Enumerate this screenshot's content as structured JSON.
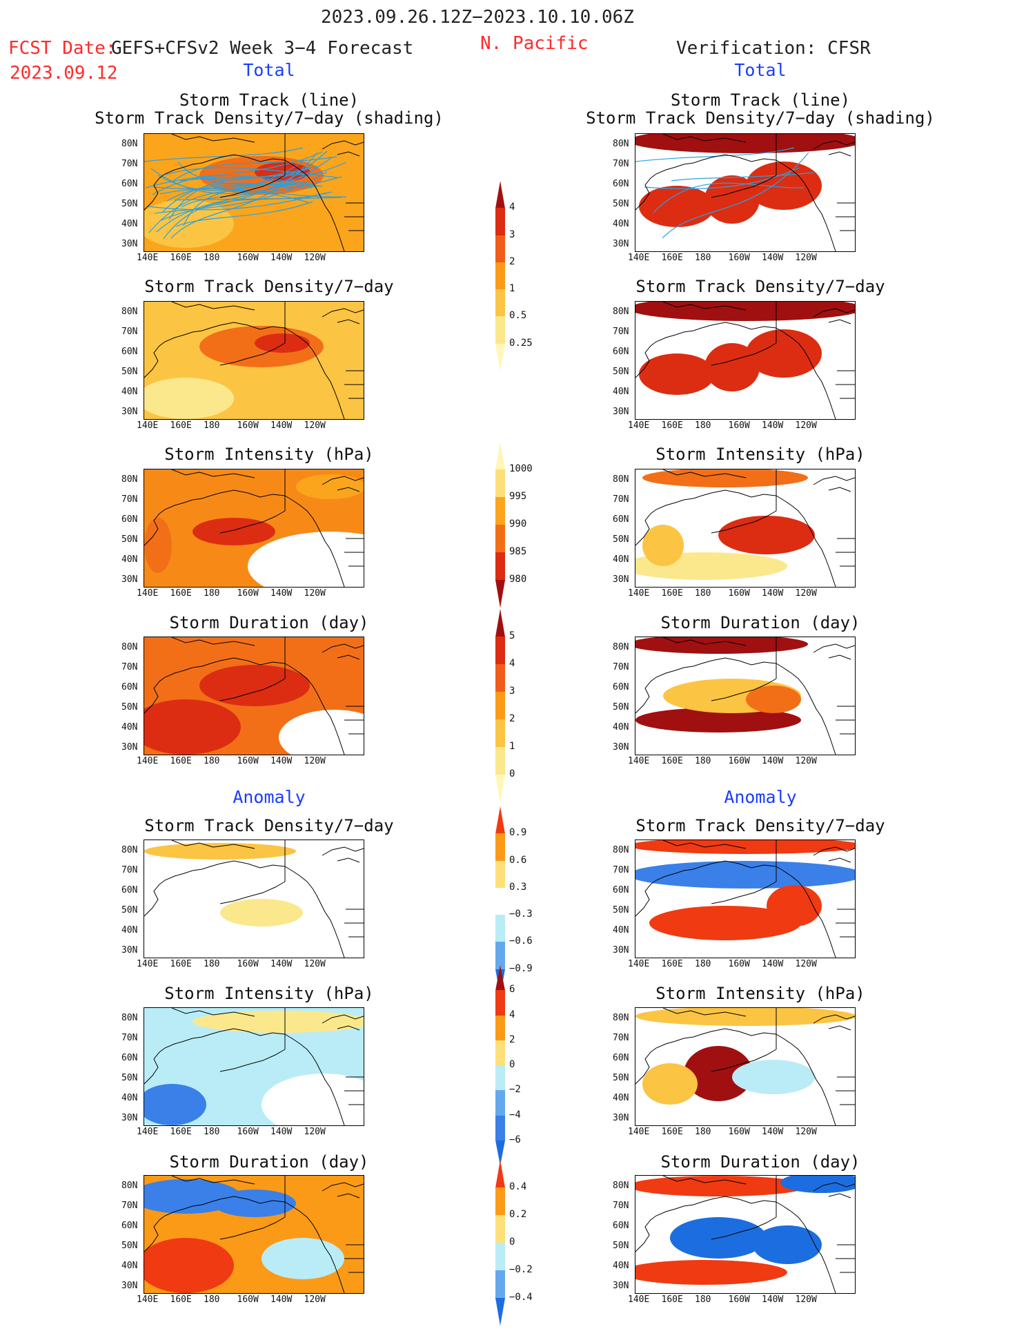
{
  "header": {
    "date_range": "2023.09.26.12Z−2023.10.10.06Z",
    "fcst_label": "FCST Date:",
    "fcst_source": "GEFS+CFSv2 Week 3−4 Forecast",
    "region": "N. Pacific",
    "verification": "Verification: CFSR",
    "fcst_date": "2023.09.12"
  },
  "columns": {
    "left": {
      "section_total": "Total",
      "section_anomaly": "Anomaly"
    },
    "right": {
      "section_total": "Total",
      "section_anomaly": "Anomaly"
    }
  },
  "panel_titles": {
    "track_line": "Storm Track (line)",
    "track_shading": "Storm Track Density/7−day (shading)",
    "density": "Storm Track Density/7−day",
    "intensity": "Storm Intensity (hPa)",
    "duration": "Storm Duration (day)"
  },
  "axes": {
    "lat_ticks": [
      "80N",
      "70N",
      "60N",
      "50N",
      "40N",
      "30N"
    ],
    "lon_ticks": [
      "140E",
      "160E",
      "180",
      "160W",
      "140W",
      "120W"
    ]
  },
  "colorbars": [
    {
      "id": "density_total",
      "labels": [
        "4",
        "3",
        "2",
        "1",
        "0.5",
        "0.25"
      ],
      "colors": [
        "#a01010",
        "#dc2d12",
        "#f25c19",
        "#fb9a17",
        "#fcc443",
        "#fbe88c",
        "#fff7b8"
      ]
    },
    {
      "id": "intensity_total",
      "labels": [
        "1000",
        "995",
        "990",
        "985",
        "980"
      ],
      "colors": [
        "#fff6b4",
        "#fddf7a",
        "#fba51c",
        "#f26f18",
        "#dc2d12",
        "#a01010"
      ]
    },
    {
      "id": "duration_total",
      "labels": [
        "5",
        "4",
        "3",
        "2",
        "1",
        "0"
      ],
      "colors": [
        "#a01010",
        "#dc2d12",
        "#f25c19",
        "#fb9a17",
        "#fcc443",
        "#fbe88c",
        "#fff7b8"
      ]
    },
    {
      "id": "density_anom",
      "labels": [
        "0.9",
        "0.6",
        "0.3",
        "−0.3",
        "−0.6",
        "−0.9"
      ],
      "colors": [
        "#f03a12",
        "#fb9a17",
        "#fde07a",
        "#ffffff",
        "#b9ecf7",
        "#64a8ee",
        "#1c6ee0"
      ]
    },
    {
      "id": "intensity_anom",
      "labels": [
        "6",
        "4",
        "2",
        "0",
        "−2",
        "−4",
        "−6"
      ],
      "colors": [
        "#a01010",
        "#f03a12",
        "#fb9a17",
        "#fde07a",
        "#b9ecf7",
        "#64a8ee",
        "#3a80e8",
        "#1c6ee0"
      ]
    },
    {
      "id": "duration_anom",
      "labels": [
        "0.4",
        "0.2",
        "0",
        "−0.2",
        "−0.4"
      ],
      "colors": [
        "#f03a12",
        "#fb9a17",
        "#fde07a",
        "#b9ecf7",
        "#64a8ee",
        "#1c6ee0"
      ]
    }
  ],
  "panel_fills": {
    "left_track": "#fba51c",
    "right_track": "#ffffff",
    "left_density": "#fcc443",
    "right_density": "#ffffff",
    "left_intensity": "#f78a17",
    "right_intensity": "#ffffff",
    "left_duration": "#f26f18",
    "right_duration": "#ffffff",
    "left_density_anom": "#ffffff",
    "right_density_anom": "#ffffff",
    "left_intensity_anom": "#b9ecf7",
    "right_intensity_anom": "#ffffff",
    "left_duration_anom": "#fb9a17",
    "right_duration_anom": "#ffffff"
  },
  "track_line_color": "#2aa0e0"
}
